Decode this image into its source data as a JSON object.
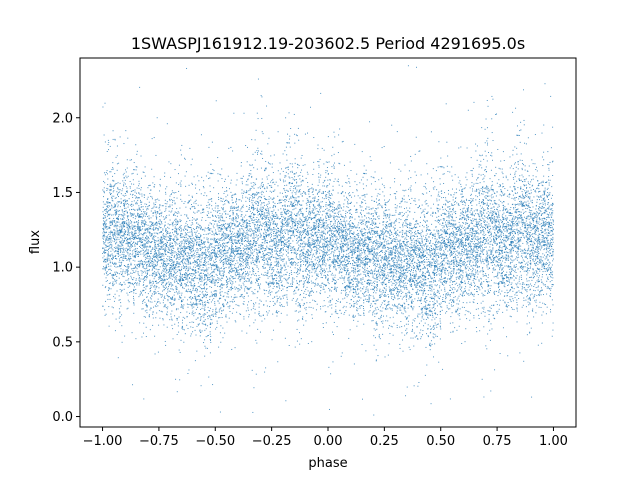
{
  "chart_data": {
    "type": "scatter",
    "title": "1SWASPJ161912.19-203602.5 Period 4291695.0s",
    "xlabel": "phase",
    "ylabel": "flux",
    "xlim": [
      -1.1,
      1.1
    ],
    "ylim": [
      -0.07,
      2.4
    ],
    "xticks": [
      -1.0,
      -0.75,
      -0.5,
      -0.25,
      0.0,
      0.25,
      0.5,
      0.75,
      1.0
    ],
    "xtick_labels": [
      "−1.00",
      "−0.75",
      "−0.50",
      "−0.25",
      "0.00",
      "0.25",
      "0.50",
      "0.75",
      "1.00"
    ],
    "yticks": [
      0.0,
      0.5,
      1.0,
      1.5,
      2.0
    ],
    "ytick_labels": [
      "0.0",
      "0.5",
      "1.0",
      "1.5",
      "2.0"
    ],
    "marker_color": "#1f77b4",
    "grid": false,
    "legend": "none",
    "series": [
      {
        "x": [
          -1.0,
          -0.98,
          -0.96,
          -0.94,
          -0.92,
          -0.9,
          -0.88,
          -0.86,
          -0.84,
          -0.82,
          -0.8,
          -0.78,
          -0.76,
          -0.74,
          -0.72,
          -0.7,
          -0.68,
          -0.66,
          -0.64,
          -0.62,
          -0.6,
          -0.58,
          -0.56,
          -0.54,
          -0.52,
          -0.5,
          -0.48,
          -0.46,
          -0.44,
          -0.42,
          -0.4,
          -0.38,
          -0.36,
          -0.34,
          -0.32,
          -0.3,
          -0.28,
          -0.26,
          -0.24,
          -0.22,
          -0.2,
          -0.18,
          -0.16,
          -0.14,
          -0.12,
          -0.1,
          -0.08,
          -0.06,
          -0.04,
          -0.02,
          0.0,
          0.02,
          0.04,
          0.06,
          0.08,
          0.1,
          0.12,
          0.14,
          0.16,
          0.18,
          0.2,
          0.22,
          0.24,
          0.26,
          0.28,
          0.3,
          0.32,
          0.34,
          0.36,
          0.38,
          0.4,
          0.42,
          0.44,
          0.46,
          0.48,
          0.5,
          0.52,
          0.54,
          0.56,
          0.58,
          0.6,
          0.62,
          0.64,
          0.66,
          0.68,
          0.7,
          0.72,
          0.74,
          0.76,
          0.78,
          0.8,
          0.82,
          0.84,
          0.86,
          0.88,
          0.9,
          0.92,
          0.94,
          0.96,
          0.98,
          1.0
        ],
        "y": [
          1.22,
          1.18,
          1.25,
          1.2,
          1.17,
          1.23,
          1.19,
          1.15,
          1.21,
          1.12,
          1.1,
          1.14,
          1.08,
          1.11,
          1.06,
          1.09,
          1.05,
          1.07,
          1.03,
          1.06,
          1.04,
          1.02,
          1.05,
          0.98,
          1.0,
          1.03,
          1.08,
          1.12,
          1.14,
          1.11,
          1.15,
          1.13,
          1.17,
          1.19,
          1.22,
          1.25,
          1.21,
          1.18,
          1.16,
          1.14,
          1.2,
          1.23,
          1.26,
          1.22,
          1.19,
          1.17,
          1.15,
          1.2,
          1.22,
          1.18,
          1.21,
          1.19,
          1.16,
          1.14,
          1.12,
          1.11,
          1.09,
          1.08,
          1.1,
          1.07,
          1.06,
          1.05,
          1.08,
          1.06,
          1.03,
          1.05,
          1.04,
          1.02,
          1.06,
          1.03,
          1.01,
          1.0,
          0.98,
          1.0,
          1.04,
          1.07,
          1.1,
          1.12,
          1.13,
          1.11,
          1.15,
          1.13,
          1.16,
          1.18,
          1.21,
          1.24,
          1.22,
          1.19,
          1.17,
          1.15,
          1.18,
          1.2,
          1.23,
          1.25,
          1.21,
          1.18,
          1.2,
          1.17,
          1.22,
          1.2,
          1.21
        ],
        "spread": [
          0.22,
          0.24,
          0.25,
          0.22,
          0.21,
          0.22,
          0.21,
          0.2,
          0.22,
          0.21,
          0.2,
          0.22,
          0.21,
          0.2,
          0.21,
          0.21,
          0.2,
          0.22,
          0.21,
          0.22,
          0.23,
          0.22,
          0.24,
          0.26,
          0.25,
          0.24,
          0.22,
          0.21,
          0.2,
          0.21,
          0.2,
          0.21,
          0.22,
          0.22,
          0.25,
          0.27,
          0.26,
          0.23,
          0.22,
          0.22,
          0.23,
          0.24,
          0.26,
          0.27,
          0.25,
          0.22,
          0.21,
          0.21,
          0.22,
          0.21,
          0.22,
          0.22,
          0.22,
          0.21,
          0.2,
          0.2,
          0.21,
          0.2,
          0.21,
          0.2,
          0.22,
          0.24,
          0.22,
          0.21,
          0.21,
          0.2,
          0.21,
          0.22,
          0.21,
          0.22,
          0.23,
          0.22,
          0.24,
          0.26,
          0.25,
          0.24,
          0.22,
          0.21,
          0.2,
          0.21,
          0.21,
          0.21,
          0.22,
          0.22,
          0.24,
          0.27,
          0.28,
          0.25,
          0.22,
          0.21,
          0.22,
          0.24,
          0.26,
          0.28,
          0.25,
          0.22,
          0.21,
          0.22,
          0.23,
          0.22,
          0.22
        ]
      }
    ]
  }
}
